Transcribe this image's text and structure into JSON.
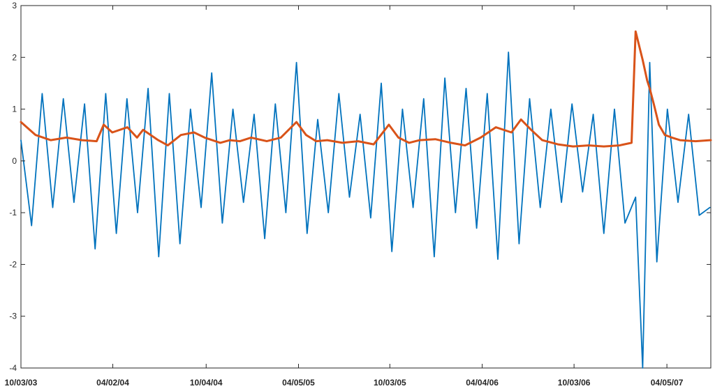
{
  "chart_data": {
    "type": "line",
    "title": "",
    "xlabel": "",
    "ylabel": "",
    "xlim": [
      "2003-10-03",
      "2007-07-01"
    ],
    "ylim": [
      -4,
      3
    ],
    "grid": false,
    "legend": "none",
    "x_ticks": [
      {
        "date": "2003-10-03",
        "label": "10/03/03"
      },
      {
        "date": "2004-04-02",
        "label": "04/02/04"
      },
      {
        "date": "2004-10-04",
        "label": "10/04/04"
      },
      {
        "date": "2005-04-05",
        "label": "04/05/05"
      },
      {
        "date": "2005-10-03",
        "label": "10/03/05"
      },
      {
        "date": "2006-04-04",
        "label": "04/04/06"
      },
      {
        "date": "2006-10-03",
        "label": "10/03/06"
      },
      {
        "date": "2007-04-05",
        "label": "04/05/07"
      }
    ],
    "y_ticks": [
      {
        "value": 3,
        "label": "3"
      },
      {
        "value": 2,
        "label": "2"
      },
      {
        "value": 1,
        "label": "1"
      },
      {
        "value": 0,
        "label": "0"
      },
      {
        "value": -1,
        "label": "-1"
      },
      {
        "value": -2,
        "label": "-2"
      },
      {
        "value": -3,
        "label": "-3"
      },
      {
        "value": -4,
        "label": "-4"
      }
    ],
    "series": [
      {
        "color": "#0072BD",
        "x": [
          "2003-10-03",
          "2003-10-24",
          "2003-11-14",
          "2003-12-05",
          "2003-12-26",
          "2004-01-16",
          "2004-02-06",
          "2004-02-27",
          "2004-03-19",
          "2004-04-09",
          "2004-04-30",
          "2004-05-21",
          "2004-06-11",
          "2004-07-02",
          "2004-07-23",
          "2004-08-13",
          "2004-09-03",
          "2004-09-24",
          "2004-10-15",
          "2004-11-05",
          "2004-11-26",
          "2004-12-17",
          "2005-01-07",
          "2005-01-28",
          "2005-02-18",
          "2005-03-11",
          "2005-04-01",
          "2005-04-22",
          "2005-05-13",
          "2005-06-03",
          "2005-06-24",
          "2005-07-15",
          "2005-08-05",
          "2005-08-26",
          "2005-09-16",
          "2005-10-07",
          "2005-10-28",
          "2005-11-18",
          "2005-12-09",
          "2005-12-30",
          "2006-01-20",
          "2006-02-10",
          "2006-03-03",
          "2006-03-24",
          "2006-04-14",
          "2006-05-05",
          "2006-05-26",
          "2006-06-16",
          "2006-07-07",
          "2006-07-28",
          "2006-08-18",
          "2006-09-08",
          "2006-09-29",
          "2006-10-20",
          "2006-11-10",
          "2006-12-01",
          "2006-12-22",
          "2007-01-12",
          "2007-02-02",
          "2007-02-16",
          "2007-03-02",
          "2007-03-16",
          "2007-04-06",
          "2007-04-27",
          "2007-05-18",
          "2007-06-08",
          "2007-06-29"
        ],
        "values": [
          0.4,
          -1.25,
          1.3,
          -0.9,
          1.2,
          -0.8,
          1.1,
          -1.7,
          1.3,
          -1.4,
          1.2,
          -1.0,
          1.4,
          -1.85,
          1.3,
          -1.6,
          1.0,
          -0.9,
          1.7,
          -1.2,
          1.0,
          -0.8,
          0.9,
          -1.5,
          1.1,
          -1.0,
          1.9,
          -1.4,
          0.8,
          -1.0,
          1.3,
          -0.7,
          0.9,
          -1.1,
          1.5,
          -1.75,
          1.0,
          -0.9,
          1.2,
          -1.85,
          1.6,
          -1.0,
          1.4,
          -1.3,
          1.3,
          -1.9,
          2.1,
          -1.6,
          1.2,
          -0.9,
          1.0,
          -0.8,
          1.1,
          -0.6,
          0.9,
          -1.4,
          1.0,
          -1.2,
          -0.7,
          -4.0,
          1.9,
          -1.95,
          1.0,
          -0.8,
          0.9,
          -1.05,
          -0.9
        ]
      },
      {
        "color": "#D95319",
        "x": [
          "2003-10-03",
          "2003-11-01",
          "2003-12-01",
          "2004-01-01",
          "2004-02-01",
          "2004-03-01",
          "2004-03-15",
          "2004-04-01",
          "2004-05-01",
          "2004-05-20",
          "2004-06-01",
          "2004-07-01",
          "2004-07-20",
          "2004-08-15",
          "2004-09-10",
          "2004-10-01",
          "2004-11-01",
          "2004-11-20",
          "2004-12-10",
          "2005-01-01",
          "2005-02-01",
          "2005-03-01",
          "2005-04-01",
          "2005-04-20",
          "2005-05-10",
          "2005-06-01",
          "2005-07-01",
          "2005-08-01",
          "2005-09-01",
          "2005-10-01",
          "2005-10-20",
          "2005-11-10",
          "2005-12-01",
          "2006-01-01",
          "2006-02-01",
          "2006-03-01",
          "2006-04-01",
          "2006-05-01",
          "2006-06-01",
          "2006-06-20",
          "2006-07-10",
          "2006-08-01",
          "2006-09-01",
          "2006-10-01",
          "2006-11-01",
          "2006-12-01",
          "2007-01-01",
          "2007-01-25",
          "2007-02-02",
          "2007-02-16",
          "2007-02-25",
          "2007-03-02",
          "2007-03-10",
          "2007-03-20",
          "2007-04-01",
          "2007-04-15",
          "2007-05-01",
          "2007-06-01",
          "2007-07-01"
        ],
        "values": [
          0.75,
          0.5,
          0.4,
          0.45,
          0.4,
          0.38,
          0.7,
          0.55,
          0.65,
          0.45,
          0.6,
          0.4,
          0.3,
          0.5,
          0.55,
          0.45,
          0.35,
          0.4,
          0.38,
          0.45,
          0.38,
          0.45,
          0.75,
          0.5,
          0.38,
          0.4,
          0.35,
          0.38,
          0.32,
          0.7,
          0.45,
          0.35,
          0.4,
          0.42,
          0.35,
          0.3,
          0.45,
          0.65,
          0.55,
          0.8,
          0.6,
          0.4,
          0.32,
          0.28,
          0.3,
          0.28,
          0.3,
          0.35,
          2.5,
          1.95,
          1.55,
          1.4,
          1.1,
          0.7,
          0.5,
          0.45,
          0.4,
          0.38,
          0.4
        ]
      }
    ]
  }
}
